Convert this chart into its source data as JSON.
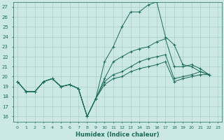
{
  "xlabel": "Humidex (Indice chaleur)",
  "bg_color": "#cce8e4",
  "grid_color": "#aacfcb",
  "line_color": "#1a6b5a",
  "xlim": [
    -0.5,
    23.5
  ],
  "ylim": [
    15.5,
    27.5
  ],
  "xticks": [
    0,
    1,
    2,
    3,
    4,
    5,
    6,
    7,
    8,
    9,
    10,
    11,
    12,
    13,
    14,
    15,
    16,
    17,
    18,
    19,
    20,
    21,
    22,
    23
  ],
  "yticks": [
    16,
    17,
    18,
    19,
    20,
    21,
    22,
    23,
    24,
    25,
    26,
    27
  ],
  "series": [
    [
      19.5,
      18.5,
      18.5,
      19.5,
      19.8,
      19.0,
      19.2,
      18.8,
      16.0,
      17.8,
      21.5,
      23.0,
      25.0,
      26.5,
      26.5,
      27.2,
      27.5,
      24.0,
      23.2,
      21.2,
      21.0,
      20.5,
      20.2
    ],
    [
      19.5,
      18.5,
      18.5,
      19.5,
      19.8,
      19.0,
      19.2,
      18.8,
      16.0,
      17.8,
      19.8,
      21.5,
      22.0,
      22.5,
      22.8,
      23.0,
      23.5,
      23.8,
      21.0,
      21.0,
      21.2,
      20.8,
      20.2
    ],
    [
      19.5,
      18.5,
      18.5,
      19.5,
      19.8,
      19.0,
      19.2,
      18.8,
      16.0,
      17.8,
      19.5,
      20.2,
      20.5,
      21.0,
      21.5,
      21.8,
      22.0,
      22.2,
      19.8,
      20.0,
      20.2,
      20.5,
      20.2
    ],
    [
      19.5,
      18.5,
      18.5,
      19.5,
      19.8,
      19.0,
      19.2,
      18.8,
      16.0,
      17.8,
      19.2,
      19.8,
      20.0,
      20.5,
      20.8,
      21.0,
      21.2,
      21.5,
      19.5,
      19.8,
      20.0,
      20.2,
      20.2
    ]
  ]
}
